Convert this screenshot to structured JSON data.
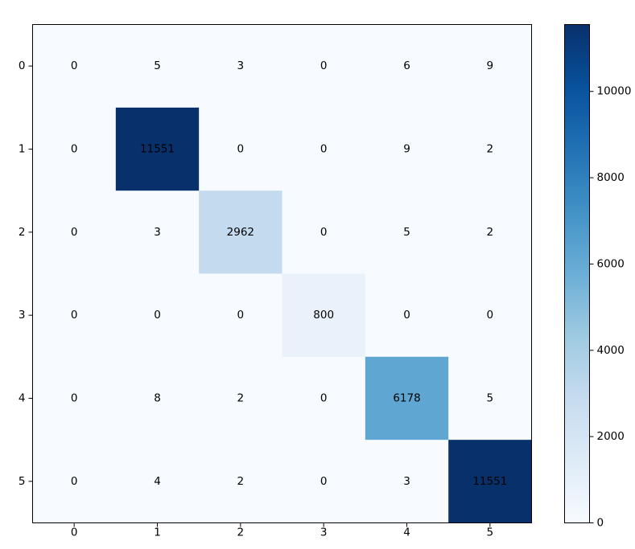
{
  "chart_data": {
    "type": "heatmap",
    "x_tick_labels": [
      "0",
      "1",
      "2",
      "3",
      "4",
      "5"
    ],
    "y_tick_labels": [
      "0",
      "1",
      "2",
      "3",
      "4",
      "5"
    ],
    "matrix": [
      [
        0,
        5,
        3,
        0,
        6,
        9
      ],
      [
        0,
        11551,
        0,
        0,
        9,
        2
      ],
      [
        0,
        3,
        2962,
        0,
        5,
        2
      ],
      [
        0,
        0,
        0,
        800,
        0,
        0
      ],
      [
        0,
        8,
        2,
        0,
        6178,
        5
      ],
      [
        0,
        4,
        2,
        0,
        3,
        11551
      ]
    ],
    "colormap": "Blues",
    "colorbar": {
      "range": [
        0,
        11551
      ],
      "ticks": [
        0,
        2000,
        4000,
        6000,
        8000,
        10000
      ],
      "tick_labels": [
        "0",
        "2000",
        "4000",
        "6000",
        "8000",
        "10000"
      ]
    },
    "grid": false
  }
}
